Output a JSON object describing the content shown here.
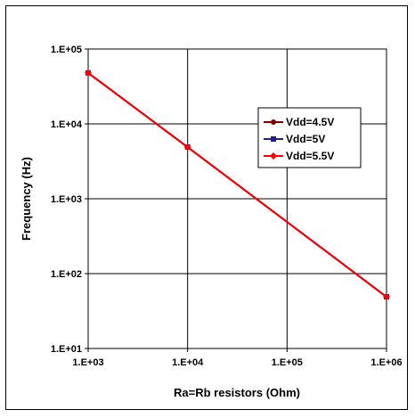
{
  "chart_data": {
    "type": "line",
    "xlabel": "Ra=Rb resistors (Ohm)",
    "ylabel": "Frequency (Hz)",
    "x_scale": "log",
    "y_scale": "log",
    "xlim": [
      1000,
      1000000
    ],
    "ylim": [
      10,
      100000
    ],
    "x_ticks": [
      "1.E+03",
      "1.E+04",
      "1.E+05",
      "1.E+06"
    ],
    "y_ticks": [
      "1.E+05",
      "1.E+04",
      "1.E+03",
      "1.E+02",
      "1.E+01"
    ],
    "grid": true,
    "legend_position": "top-right",
    "x": [
      1000,
      10000,
      1000000
    ],
    "series": [
      {
        "name": "Vdd=4.5V",
        "values": [
          48000,
          4900,
          49
        ],
        "color": "#800000",
        "marker": "circle"
      },
      {
        "name": "Vdd=5V",
        "values": [
          48000,
          4900,
          49
        ],
        "color": "#1f1f8f",
        "marker": "square"
      },
      {
        "name": "Vdd=5.5V",
        "values": [
          48000,
          4900,
          49
        ],
        "color": "#ff0000",
        "marker": "diamond"
      }
    ]
  }
}
